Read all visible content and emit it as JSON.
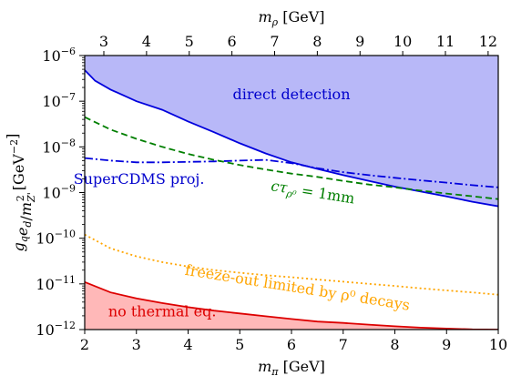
{
  "chart_data": {
    "type": "line",
    "yscale": "log",
    "xlabel": "m_π [GeV]",
    "ylabel": "g_q e_d/m_Z'^2 [GeV^-2]",
    "top_xlabel": "m_ρ [GeV]",
    "xlim": [
      2,
      10
    ],
    "ylim": [
      1e-12,
      1e-06
    ],
    "x_ticks": [
      2,
      3,
      4,
      5,
      6,
      7,
      8,
      9,
      10
    ],
    "x_tick_labels": [
      "2",
      "3",
      "4",
      "5",
      "6",
      "7",
      "8",
      "9",
      "10"
    ],
    "y_ticks": [
      1e-12,
      1e-11,
      1e-10,
      1e-09,
      1e-08,
      1e-07,
      1e-06
    ],
    "y_tick_labels": [
      {
        "base": "10",
        "exp": "−12"
      },
      {
        "base": "10",
        "exp": "−11"
      },
      {
        "base": "10",
        "exp": "−10"
      },
      {
        "base": "10",
        "exp": "−9"
      },
      {
        "base": "10",
        "exp": "−8"
      },
      {
        "base": "10",
        "exp": "−7"
      },
      {
        "base": "10",
        "exp": "−6"
      }
    ],
    "top_ticks_mrho": [
      3,
      4,
      5,
      6,
      7,
      8,
      9,
      10,
      11,
      12
    ],
    "top_tick_labels": [
      "3",
      "4",
      "5",
      "6",
      "7",
      "8",
      "9",
      "10",
      "11",
      "12"
    ],
    "top_axis_mapping": {
      "mpi_at_mrho_3": 2.37,
      "mpi_per_mrho": 0.826
    },
    "grid": false,
    "series": [
      {
        "key": "direct",
        "style": "solid",
        "color": "#0000dd",
        "fill": "#b8b8f8",
        "fill_to": "top",
        "x": [
          2.0,
          2.2,
          2.5,
          3.0,
          3.5,
          4.0,
          4.5,
          5.0,
          5.5,
          6.0,
          6.5,
          7.0,
          7.5,
          8.0,
          8.5,
          9.0,
          9.5,
          10.0
        ],
        "y": [
          4.8e-07,
          2.8e-07,
          1.8e-07,
          1e-07,
          6.5e-08,
          3.6e-08,
          2.1e-08,
          1.2e-08,
          7.2e-09,
          4.6e-09,
          3.3e-09,
          2.4e-09,
          1.8e-09,
          1.35e-09,
          1.05e-09,
          8.2e-10,
          6.3e-10,
          5e-10
        ]
      },
      {
        "key": "supercdms",
        "style": "dashdot",
        "color": "#0000dd",
        "x": [
          2.0,
          2.5,
          3.0,
          3.5,
          4.0,
          4.5,
          5.0,
          5.5,
          6.0,
          6.5,
          7.0,
          7.5,
          8.0,
          8.5,
          9.0,
          9.5,
          10.0
        ],
        "y": [
          5.7e-09,
          5e-09,
          4.6e-09,
          4.6e-09,
          4.7e-09,
          4.8e-09,
          5e-09,
          5.2e-09,
          4.4e-09,
          3.4e-09,
          2.8e-09,
          2.4e-09,
          2.1e-09,
          1.85e-09,
          1.65e-09,
          1.45e-09,
          1.3e-09
        ]
      },
      {
        "key": "ctau",
        "style": "dashed",
        "color": "#007f00",
        "x": [
          2.0,
          2.5,
          3.0,
          3.5,
          4.0,
          4.5,
          5.0,
          5.5,
          6.0,
          6.5,
          7.0,
          7.5,
          8.0,
          8.5,
          9.0,
          9.5,
          10.0
        ],
        "y": [
          4.5e-08,
          2.4e-08,
          1.5e-08,
          1e-08,
          7e-09,
          5.2e-09,
          4e-09,
          3.2e-09,
          2.6e-09,
          2.2e-09,
          1.8e-09,
          1.5e-09,
          1.3e-09,
          1.1e-09,
          9.5e-10,
          8.3e-10,
          7.2e-10
        ]
      },
      {
        "key": "freezeout",
        "style": "dotted",
        "color": "#ffa500",
        "x": [
          2.0,
          2.5,
          3.0,
          3.5,
          4.0,
          4.5,
          5.0,
          5.5,
          6.0,
          6.5,
          7.0,
          7.5,
          8.0,
          8.5,
          9.0,
          9.5,
          10.0
        ],
        "y": [
          1.2e-10,
          6e-11,
          4e-11,
          3e-11,
          2.4e-11,
          2e-11,
          1.75e-11,
          1.55e-11,
          1.4e-11,
          1.25e-11,
          1.12e-11,
          1e-11,
          9e-12,
          8e-12,
          7.2e-12,
          6.5e-12,
          5.8e-12
        ]
      },
      {
        "key": "thermal",
        "style": "solid",
        "color": "#dd0000",
        "fill": "#ffb8b8",
        "fill_to": "bottom",
        "x": [
          2.0,
          2.5,
          3.0,
          3.5,
          4.0,
          4.5,
          5.0,
          5.5,
          6.0,
          6.5,
          7.0,
          7.5,
          8.0,
          8.5,
          9.0,
          9.5,
          10.0
        ],
        "y": [
          1.1e-11,
          6.5e-12,
          4.8e-12,
          3.8e-12,
          3.1e-12,
          2.6e-12,
          2.25e-12,
          1.95e-12,
          1.7e-12,
          1.5e-12,
          1.4e-12,
          1.28e-12,
          1.18e-12,
          1.1e-12,
          1.05e-12,
          1.01e-12,
          1e-12
        ]
      }
    ],
    "annotations": [
      {
        "key": "direct_label",
        "text": "direct detection",
        "color": "#0000cc",
        "x": 6.0,
        "y": 1.1e-07,
        "rotate": 0
      },
      {
        "key": "supercdms_label",
        "text": "SuperCDMS proj.",
        "color": "#0000cc",
        "x": 3.05,
        "y": 1.55e-09,
        "rotate": 0
      },
      {
        "key": "ctau_label",
        "text": "cτ",
        "sub": "ρ⁰",
        "rest": " = 1mm",
        "color": "#007f00",
        "x": 6.4,
        "y": 8e-10,
        "rotate": 9
      },
      {
        "key": "freezeout_label",
        "text": "freeze-out limited by ρ⁰ decays",
        "color": "#ffa500",
        "x": 6.1,
        "y": 6.5e-12,
        "rotate": 9
      },
      {
        "key": "thermal_label",
        "text": "no thermal eq.",
        "color": "#dd0000",
        "x": 3.5,
        "y": 1.95e-12,
        "rotate": 0
      }
    ]
  }
}
